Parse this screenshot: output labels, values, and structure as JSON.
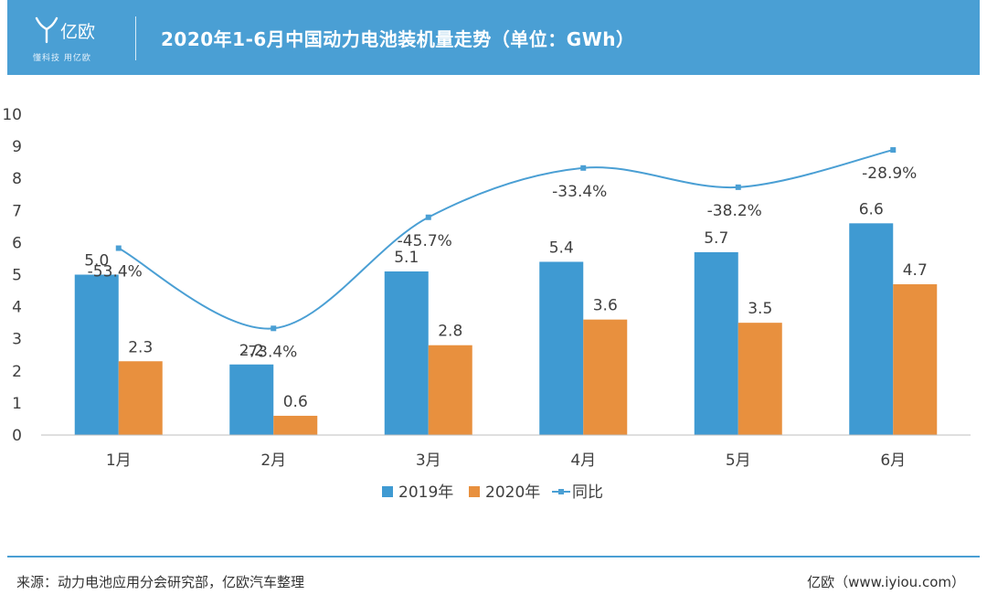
{
  "header": {
    "logo_name": "亿欧",
    "logo_tagline": "懂科技 用亿欧",
    "title": "2020年1-6月中国动力电池装机量走势（单位：GWh）"
  },
  "footer": {
    "source": "来源：动力电池应用分会研究部，亿欧汽车整理",
    "credit": "亿欧（www.iyiou.com）"
  },
  "colors": {
    "header_bg": "#4a9fd4",
    "series_2019": "#3f9ad2",
    "series_2020": "#e8903e",
    "yoy_line": "#4a9fd4"
  },
  "chart_data": {
    "type": "bar",
    "categories": [
      "1月",
      "2月",
      "3月",
      "4月",
      "5月",
      "6月"
    ],
    "series": [
      {
        "name": "2019年",
        "type": "bar",
        "values": [
          5.0,
          2.2,
          5.1,
          5.4,
          5.7,
          6.6
        ],
        "labels": [
          "5.0",
          "2.2",
          "5.1",
          "5.4",
          "5.7",
          "6.6"
        ]
      },
      {
        "name": "2020年",
        "type": "bar",
        "values": [
          2.3,
          0.6,
          2.8,
          3.6,
          3.5,
          4.7
        ],
        "labels": [
          "2.3",
          "0.6",
          "2.8",
          "3.6",
          "3.5",
          "4.7"
        ]
      },
      {
        "name": "同比",
        "type": "line",
        "values": [
          -53.4,
          -73.4,
          -45.7,
          -33.4,
          -38.2,
          -28.9
        ],
        "labels": [
          "-53.4%",
          "-73.4%",
          "-45.7%",
          "-33.4%",
          "-38.2%",
          "-28.9%"
        ]
      }
    ],
    "yticks": [
      "0",
      "1",
      "2",
      "3",
      "4",
      "5",
      "6",
      "7",
      "8",
      "9",
      "10"
    ],
    "ylim": [
      0,
      10
    ],
    "grid": false,
    "legend": "bottom-center"
  }
}
